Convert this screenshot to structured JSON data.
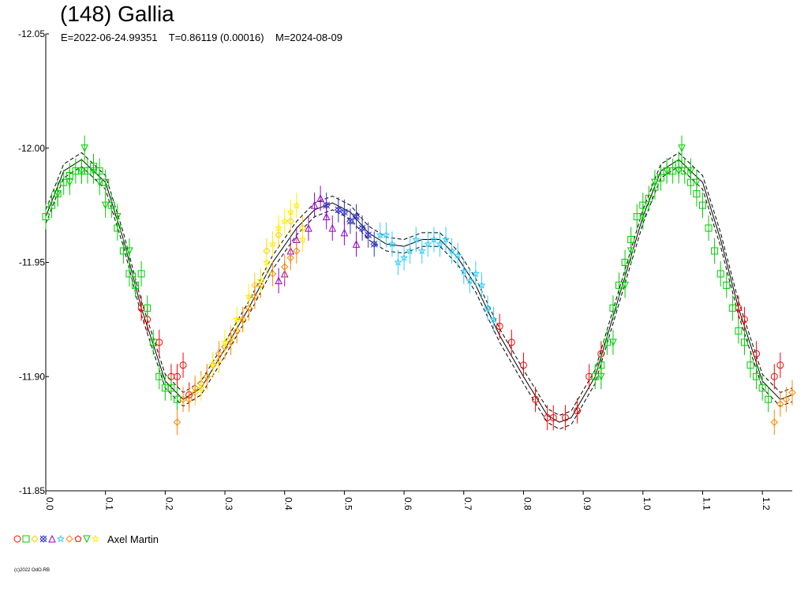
{
  "chart_data": {
    "type": "scatter",
    "title": "(148) Gallia",
    "subtitle": "E=2022-06-24.99351    T=0.86119 (0.00016)    M=2024-08-09",
    "xlim": [
      0,
      1.25
    ],
    "ylim": [
      -12.05,
      -11.85
    ],
    "y_inverted": true,
    "x_ticks": [
      "0.0",
      "0.1",
      "0.2",
      "0.3",
      "0.4",
      "0.5",
      "0.6",
      "0.7",
      "0.8",
      "0.9",
      "1.0",
      "1.1",
      "1.2"
    ],
    "y_ticks": [
      "-12.05",
      "-12.00",
      "-11.95",
      "-11.90",
      "-11.85"
    ],
    "grid": false,
    "fit_curve": {
      "x": [
        0.0,
        0.03,
        0.06,
        0.08,
        0.1,
        0.13,
        0.16,
        0.2,
        0.23,
        0.26,
        0.3,
        0.34,
        0.38,
        0.42,
        0.45,
        0.48,
        0.51,
        0.54,
        0.57,
        0.6,
        0.63,
        0.66,
        0.69,
        0.72,
        0.76,
        0.8,
        0.84,
        0.86,
        0.88,
        0.92,
        0.96,
        1.0,
        1.03,
        1.06,
        1.08,
        1.1,
        1.13,
        1.16,
        1.2,
        1.23,
        1.25
      ],
      "y": [
        -11.97,
        -11.99,
        -11.995,
        -11.99,
        -11.985,
        -11.96,
        -11.93,
        -11.898,
        -11.89,
        -11.895,
        -11.912,
        -11.93,
        -11.95,
        -11.965,
        -11.973,
        -11.976,
        -11.972,
        -11.963,
        -11.958,
        -11.957,
        -11.96,
        -11.96,
        -11.952,
        -11.94,
        -11.918,
        -11.9,
        -11.883,
        -11.88,
        -11.882,
        -11.9,
        -11.935,
        -11.97,
        -11.99,
        -11.995,
        -11.99,
        -11.985,
        -11.96,
        -11.93,
        -11.898,
        -11.89,
        -11.892
      ],
      "band": 0.003
    },
    "series": [
      {
        "marker": "circle",
        "color": "#ff0000",
        "x": [
          0.16,
          0.17,
          0.19,
          0.21,
          0.22,
          0.23,
          0.24,
          0.76,
          0.78,
          0.8,
          0.82,
          0.84,
          0.85,
          0.87,
          0.89,
          0.91,
          0.93,
          1.16,
          1.17,
          1.19,
          1.22,
          1.23
        ],
        "y": [
          -11.93,
          -11.925,
          -11.915,
          -11.9,
          -11.9,
          -11.905,
          -11.892,
          -11.922,
          -11.915,
          -11.905,
          -11.89,
          -11.882,
          -11.882,
          -11.882,
          -11.885,
          -11.9,
          -11.91,
          -11.93,
          -11.925,
          -11.91,
          -11.9,
          -11.905
        ]
      },
      {
        "marker": "square",
        "color": "#00cc00",
        "x": [
          0.0,
          0.01,
          0.02,
          0.03,
          0.04,
          0.05,
          0.06,
          0.07,
          0.08,
          0.09,
          0.1,
          0.11,
          0.12,
          0.13,
          0.14,
          0.15,
          0.16,
          0.17,
          0.18,
          0.19,
          0.2,
          0.21,
          0.22,
          0.92,
          0.93,
          0.94,
          0.95,
          0.96,
          0.97,
          0.98,
          0.99,
          1.0,
          1.01,
          1.02,
          1.03,
          1.04,
          1.05,
          1.06,
          1.07,
          1.08,
          1.09,
          1.1,
          1.11,
          1.12,
          1.13,
          1.14,
          1.15,
          1.16,
          1.17,
          1.18,
          1.19,
          1.2,
          1.21
        ],
        "y": [
          -11.97,
          -11.975,
          -11.98,
          -11.985,
          -11.988,
          -11.99,
          -11.99,
          -11.99,
          -11.992,
          -11.99,
          -11.985,
          -11.975,
          -11.965,
          -11.955,
          -11.945,
          -11.94,
          -11.945,
          -11.93,
          -11.915,
          -11.9,
          -11.895,
          -11.895,
          -11.89,
          -11.9,
          -11.905,
          -11.915,
          -11.93,
          -11.94,
          -11.95,
          -11.96,
          -11.97,
          -11.975,
          -11.978,
          -11.983,
          -11.987,
          -11.99,
          -11.99,
          -11.993,
          -11.99,
          -11.985,
          -11.98,
          -11.975,
          -11.965,
          -11.955,
          -11.945,
          -11.94,
          -11.93,
          -11.92,
          -11.915,
          -11.905,
          -11.9,
          -11.895,
          -11.89
        ]
      },
      {
        "marker": "diamond",
        "color": "#ffcc00",
        "x": [
          0.25,
          0.27,
          0.29,
          0.31,
          0.33,
          0.35,
          0.37,
          0.39,
          0.41,
          0.43
        ],
        "y": [
          -11.893,
          -11.9,
          -11.907,
          -11.917,
          -11.925,
          -11.94,
          -11.955,
          -11.962,
          -11.968,
          -11.965
        ]
      },
      {
        "marker": "xdiamond",
        "color": "#3333cc",
        "x": [
          0.47,
          0.49,
          0.5,
          0.51,
          0.52,
          0.53,
          0.54,
          0.55
        ],
        "y": [
          -11.975,
          -11.973,
          -11.972,
          -11.968,
          -11.97,
          -11.965,
          -11.962,
          -11.958
        ]
      },
      {
        "marker": "triangle-up",
        "color": "#9900cc",
        "x": [
          0.39,
          0.4,
          0.41,
          0.42,
          0.44,
          0.45,
          0.46,
          0.47,
          0.48,
          0.5,
          0.52
        ],
        "y": [
          -11.942,
          -11.945,
          -11.955,
          -11.96,
          -11.965,
          -11.975,
          -11.978,
          -11.97,
          -11.965,
          -11.963,
          -11.958
        ]
      },
      {
        "marker": "star",
        "color": "#33ccff",
        "x": [
          0.56,
          0.57,
          0.58,
          0.59,
          0.6,
          0.61,
          0.62,
          0.63,
          0.64,
          0.65,
          0.66,
          0.67,
          0.68,
          0.69,
          0.7,
          0.71,
          0.72,
          0.73,
          0.74,
          0.75
        ],
        "y": [
          -11.962,
          -11.962,
          -11.958,
          -11.95,
          -11.952,
          -11.955,
          -11.96,
          -11.955,
          -11.958,
          -11.96,
          -11.958,
          -11.96,
          -11.955,
          -11.953,
          -11.946,
          -11.942,
          -11.945,
          -11.94,
          -11.93,
          -11.925
        ]
      },
      {
        "marker": "diamond",
        "color": "#ff8800",
        "x": [
          0.22,
          0.23,
          0.24,
          0.25,
          0.26,
          0.27,
          0.28,
          0.29,
          0.3,
          0.31,
          0.32,
          0.33,
          0.34,
          0.35,
          0.36,
          0.38,
          0.4,
          0.41,
          0.42,
          1.22,
          1.23,
          1.24,
          1.25
        ],
        "y": [
          -11.88,
          -11.89,
          -11.89,
          -11.895,
          -11.897,
          -11.9,
          -11.905,
          -11.91,
          -11.913,
          -11.915,
          -11.92,
          -11.925,
          -11.93,
          -11.935,
          -11.94,
          -11.945,
          -11.948,
          -11.952,
          -11.955,
          -11.88,
          -11.888,
          -11.89,
          -11.893
        ]
      },
      {
        "marker": "triangle-down",
        "color": "#00cc00",
        "x": [
          0.02,
          0.04,
          0.06,
          0.065,
          0.08,
          0.09,
          0.1,
          0.12,
          0.14,
          0.93,
          0.95,
          0.97,
          0.98,
          1.0,
          1.02,
          1.04,
          1.06,
          1.065,
          1.08,
          1.09
        ],
        "y": [
          -11.98,
          -11.985,
          -11.99,
          -12.0,
          -11.99,
          -11.985,
          -11.975,
          -11.97,
          -11.955,
          -11.9,
          -11.915,
          -11.94,
          -11.955,
          -11.97,
          -11.985,
          -11.99,
          -11.99,
          -12.0,
          -11.99,
          -11.985
        ]
      },
      {
        "marker": "star",
        "color": "#ffee00",
        "x": [
          0.26,
          0.28,
          0.3,
          0.32,
          0.34,
          0.36,
          0.37,
          0.38,
          0.39,
          0.4,
          0.41,
          0.42,
          0.43
        ],
        "y": [
          -11.895,
          -11.905,
          -11.915,
          -11.925,
          -11.935,
          -11.942,
          -11.95,
          -11.958,
          -11.965,
          -11.968,
          -11.972,
          -11.975,
          -11.96
        ]
      }
    ],
    "legend": {
      "placement": "bottom-left",
      "markers": [
        {
          "marker": "circle",
          "color": "#ff0000"
        },
        {
          "marker": "square",
          "color": "#00cc00"
        },
        {
          "marker": "diamond",
          "color": "#ffcc00"
        },
        {
          "marker": "xdiamond",
          "color": "#3333cc"
        },
        {
          "marker": "triangle-up",
          "color": "#9900cc"
        },
        {
          "marker": "star",
          "color": "#33ccff"
        },
        {
          "marker": "diamond",
          "color": "#ff8800"
        },
        {
          "marker": "pentagon",
          "color": "#ff0000"
        },
        {
          "marker": "triangle-down",
          "color": "#00cc00"
        },
        {
          "marker": "star",
          "color": "#ffee00"
        }
      ],
      "observer": "Axel Martin"
    }
  },
  "footer": {
    "copyright": "(c)2022 OdO-RB"
  }
}
